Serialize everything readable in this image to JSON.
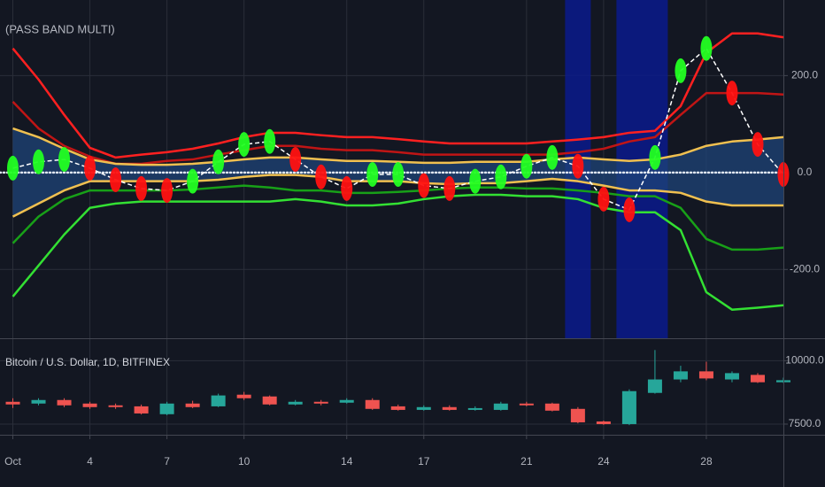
{
  "chart_data": [
    {
      "type": "line",
      "title": "(PASS BAND MULTI)",
      "x": [
        1,
        2,
        3,
        4,
        5,
        6,
        7,
        8,
        9,
        10,
        11,
        12,
        13,
        14,
        15,
        16,
        17,
        18,
        19,
        20,
        21,
        22,
        23,
        24,
        25,
        26,
        27,
        28,
        29,
        30,
        31
      ],
      "xlim": [
        0.5,
        31
      ],
      "ylim": [
        -342,
        356
      ],
      "yticks": [
        {
          "value": 200,
          "label": "200.0"
        },
        {
          "value": 0,
          "label": "0.0"
        },
        {
          "value": -200,
          "label": "-200.0"
        }
      ],
      "grid": true,
      "zero_line": true,
      "band_color": "#1f4478",
      "highlight_color": "#0a1a8c",
      "highlight_ranges": [
        [
          22.5,
          23.5
        ],
        [
          24.5,
          26.5
        ]
      ],
      "series": [
        {
          "role": "line",
          "color": "#ff2020",
          "values": [
            256,
            192,
            119,
            51,
            31,
            37,
            42,
            49,
            60,
            73,
            82,
            82,
            77,
            73,
            73,
            69,
            64,
            60,
            60,
            60,
            60,
            64,
            68,
            73,
            82,
            86,
            137,
            247,
            287,
            287,
            279
          ]
        },
        {
          "role": "line",
          "color": "#c01515",
          "values": [
            146,
            91,
            55,
            33,
            18,
            18,
            24,
            27,
            37,
            46,
            55,
            55,
            49,
            46,
            46,
            42,
            37,
            37,
            37,
            37,
            37,
            37,
            42,
            49,
            64,
            73,
            119,
            164,
            164,
            164,
            161
          ]
        },
        {
          "role": "band-upper",
          "color": "#f0c050",
          "values": [
            91,
            73,
            49,
            27,
            18,
            16,
            16,
            18,
            22,
            27,
            31,
            31,
            27,
            24,
            24,
            22,
            20,
            20,
            22,
            22,
            22,
            27,
            31,
            27,
            24,
            27,
            37,
            55,
            64,
            68,
            73
          ]
        },
        {
          "role": "band-lower",
          "color": "#f0c050",
          "values": [
            -91,
            -64,
            -37,
            -18,
            -18,
            -18,
            -18,
            -18,
            -15,
            -9,
            -5,
            -5,
            -9,
            -18,
            -18,
            -18,
            -22,
            -24,
            -22,
            -22,
            -18,
            -13,
            -18,
            -27,
            -37,
            -37,
            -42,
            -60,
            -68,
            -68,
            -68
          ]
        },
        {
          "role": "line",
          "color": "#18a018",
          "values": [
            -146,
            -91,
            -55,
            -37,
            -37,
            -37,
            -37,
            -35,
            -31,
            -27,
            -31,
            -37,
            -37,
            -42,
            -42,
            -40,
            -37,
            -33,
            -31,
            -31,
            -33,
            -33,
            -37,
            -42,
            -49,
            -49,
            -73,
            -137,
            -159,
            -159,
            -155
          ]
        },
        {
          "role": "line",
          "color": "#33e033",
          "values": [
            -256,
            -192,
            -128,
            -73,
            -64,
            -60,
            -60,
            -60,
            -60,
            -60,
            -60,
            -55,
            -60,
            -68,
            -68,
            -64,
            -55,
            -49,
            -46,
            -46,
            -49,
            -49,
            -55,
            -73,
            -82,
            -82,
            -119,
            -247,
            -283,
            -279,
            -274
          ]
        },
        {
          "role": "oscillator",
          "color": "#ffffff",
          "values": [
            9,
            22,
            27,
            9,
            -15,
            -33,
            -37,
            -18,
            22,
            58,
            64,
            27,
            -9,
            -33,
            -4,
            -4,
            -27,
            -33,
            -18,
            -9,
            13,
            31,
            13,
            -55,
            -77,
            31,
            210,
            256,
            164,
            58,
            -4
          ],
          "marker_colors": [
            "#22ff22",
            "#22ff22",
            "#22ff22",
            "#ff1111",
            "#ff1111",
            "#ff1111",
            "#ff1111",
            "#22ff22",
            "#22ff22",
            "#22ff22",
            "#22ff22",
            "#ff1111",
            "#ff1111",
            "#ff1111",
            "#22ff22",
            "#22ff22",
            "#ff1111",
            "#ff1111",
            "#22ff22",
            "#22ff22",
            "#22ff22",
            "#22ff22",
            "#ff1111",
            "#ff1111",
            "#ff1111",
            "#22ff22",
            "#22ff22",
            "#22ff22",
            "#ff1111",
            "#ff1111",
            "#ff1111"
          ]
        }
      ]
    },
    {
      "type": "candlestick",
      "title": "Bitcoin / U.S. Dollar, 1D, BITFINEX",
      "x": [
        1,
        2,
        3,
        4,
        5,
        6,
        7,
        8,
        9,
        10,
        11,
        12,
        13,
        14,
        15,
        16,
        17,
        18,
        19,
        20,
        21,
        22,
        23,
        24,
        25,
        26,
        27,
        28,
        29,
        30,
        31
      ],
      "xlim": [
        0.5,
        31
      ],
      "xticks": [
        {
          "value": 1,
          "label": "Oct"
        },
        4,
        7,
        10,
        14,
        17,
        21,
        24,
        28
      ],
      "ylim": [
        7080,
        10850
      ],
      "yticks": [
        {
          "value": 10000,
          "label": "10000.0"
        },
        {
          "value": 7500,
          "label": "7500.0"
        }
      ],
      "grid": true,
      "up_color": "#26a69a",
      "down_color": "#ef5350",
      "open": [
        8380,
        8310,
        8450,
        8310,
        8240,
        8200,
        7890,
        8310,
        8200,
        8660,
        8590,
        8275,
        8380,
        8345,
        8450,
        8200,
        8060,
        8170,
        8060,
        8060,
        8310,
        8310,
        8100,
        7605,
        7500,
        8730,
        9260,
        9580,
        9260,
        9440,
        9150
      ],
      "high": [
        8520,
        8520,
        8520,
        8380,
        8310,
        8270,
        8380,
        8420,
        8700,
        8770,
        8630,
        8450,
        8450,
        8520,
        8520,
        8270,
        8240,
        8240,
        8200,
        8380,
        8380,
        8345,
        8170,
        7640,
        8870,
        10420,
        9800,
        9960,
        9580,
        9510,
        9330
      ],
      "low": [
        8135,
        8240,
        8170,
        8100,
        8100,
        7880,
        7850,
        8130,
        8170,
        8450,
        8240,
        8240,
        8240,
        8310,
        8060,
        8030,
        8030,
        8030,
        8030,
        8030,
        8200,
        8000,
        7530,
        7470,
        7460,
        8700,
        9150,
        9230,
        9150,
        9120,
        9120
      ],
      "close": [
        8275,
        8450,
        8240,
        8170,
        8170,
        7920,
        8310,
        8170,
        8630,
        8520,
        8275,
        8380,
        8310,
        8450,
        8100,
        8060,
        8170,
        8060,
        8130,
        8310,
        8240,
        8030,
        7570,
        7500,
        8800,
        9260,
        9580,
        9300,
        9510,
        9150,
        9230
      ]
    }
  ]
}
